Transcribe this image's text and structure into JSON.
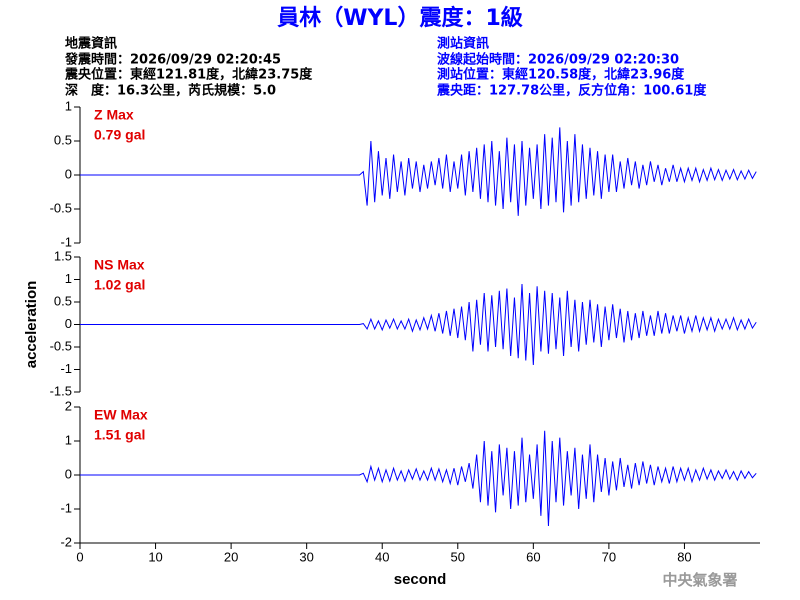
{
  "header": {
    "title": "員林（WYL）震度：1級",
    "left": [
      "地震資訊",
      "發震時間：2026/09/29 02:20:45",
      "震央位置：東經121.81度，北緯23.75度",
      "深　度：16.3公里，芮氏規模：5.0"
    ],
    "right": [
      "測站資訊",
      "波線起始時間：2026/09/29 02:20:30",
      "測站位置：東經120.58度，北緯23.96度",
      "震央距：127.78公里，反方位角：100.61度"
    ]
  },
  "footer": "中央氣象署",
  "chart_data": [
    {
      "type": "line",
      "annotations": [
        "Z Max",
        "0.79 gal"
      ],
      "color": "#0000ff",
      "xlim": [
        0,
        90
      ],
      "ylim": [
        -1,
        1
      ],
      "yticks": [
        -1,
        -0.5,
        0,
        0.5,
        1
      ],
      "x": [
        0,
        10,
        20,
        30,
        37,
        37.5,
        38,
        38.5,
        39,
        39.5,
        40,
        40.5,
        41,
        41.5,
        42,
        42.5,
        43,
        43.5,
        44,
        44.5,
        45,
        45.5,
        46,
        46.5,
        47,
        47.5,
        48,
        48.5,
        49,
        49.5,
        50,
        50.5,
        51,
        51.5,
        52,
        52.5,
        53,
        53.5,
        54,
        54.5,
        55,
        55.5,
        56,
        56.5,
        57,
        57.5,
        58,
        58.5,
        59,
        59.5,
        60,
        60.5,
        61,
        61.5,
        62,
        62.5,
        63,
        63.5,
        64,
        64.5,
        65,
        65.5,
        66,
        66.5,
        67,
        67.5,
        68,
        68.5,
        69,
        69.5,
        70,
        70.5,
        71,
        71.5,
        72,
        72.5,
        73,
        73.5,
        74,
        74.5,
        75,
        75.5,
        76,
        76.5,
        77,
        77.5,
        78,
        78.5,
        79,
        79.5,
        80,
        80.5,
        81,
        81.5,
        82,
        82.5,
        83,
        83.5,
        84,
        84.5,
        85,
        85.5,
        86,
        86.5,
        87,
        87.5,
        88,
        88.5,
        89,
        89.5
      ],
      "values": [
        0,
        0,
        0,
        0,
        0,
        0.05,
        -0.45,
        0.5,
        -0.4,
        0.35,
        -0.3,
        0.25,
        -0.35,
        0.3,
        -0.25,
        0.2,
        -0.3,
        0.25,
        -0.2,
        0.2,
        -0.25,
        0.15,
        -0.2,
        0.2,
        -0.15,
        0.25,
        -0.2,
        0.3,
        -0.25,
        0.2,
        -0.2,
        0.3,
        -0.3,
        0.35,
        -0.25,
        0.4,
        -0.35,
        0.45,
        -0.4,
        0.5,
        -0.45,
        0.35,
        -0.5,
        0.55,
        -0.4,
        0.45,
        -0.6,
        0.5,
        -0.45,
        0.4,
        -0.35,
        0.45,
        -0.5,
        0.6,
        -0.45,
        0.55,
        -0.4,
        0.7,
        -0.55,
        0.5,
        -0.45,
        0.6,
        -0.4,
        0.45,
        -0.35,
        0.4,
        -0.3,
        0.35,
        -0.35,
        0.3,
        -0.25,
        0.3,
        -0.25,
        0.2,
        -0.2,
        0.25,
        -0.15,
        0.2,
        -0.2,
        0.15,
        -0.15,
        0.2,
        -0.1,
        0.15,
        -0.15,
        0.1,
        -0.1,
        0.15,
        -0.1,
        0.1,
        -0.1,
        0.1,
        -0.08,
        0.1,
        -0.1,
        0.08,
        -0.08,
        0.1,
        -0.07,
        0.08,
        -0.08,
        0.07,
        -0.06,
        0.08,
        -0.07,
        0.06,
        -0.06,
        0.07,
        -0.05,
        0.05
      ]
    },
    {
      "type": "line",
      "annotations": [
        "NS Max",
        "1.02 gal"
      ],
      "color": "#0000ff",
      "ylabel": "acceleration",
      "xlim": [
        0,
        90
      ],
      "ylim": [
        -1.5,
        1.5
      ],
      "yticks": [
        -1.5,
        -1,
        -0.5,
        0,
        0.5,
        1,
        1.5
      ],
      "x": [
        0,
        10,
        20,
        30,
        37,
        37.5,
        38,
        38.5,
        39,
        39.5,
        40,
        40.5,
        41,
        41.5,
        42,
        42.5,
        43,
        43.5,
        44,
        44.5,
        45,
        45.5,
        46,
        46.5,
        47,
        47.5,
        48,
        48.5,
        49,
        49.5,
        50,
        50.5,
        51,
        51.5,
        52,
        52.5,
        53,
        53.5,
        54,
        54.5,
        55,
        55.5,
        56,
        56.5,
        57,
        57.5,
        58,
        58.5,
        59,
        59.5,
        60,
        60.5,
        61,
        61.5,
        62,
        62.5,
        63,
        63.5,
        64,
        64.5,
        65,
        65.5,
        66,
        66.5,
        67,
        67.5,
        68,
        68.5,
        69,
        69.5,
        70,
        70.5,
        71,
        71.5,
        72,
        72.5,
        73,
        73.5,
        74,
        74.5,
        75,
        75.5,
        76,
        76.5,
        77,
        77.5,
        78,
        78.5,
        79,
        79.5,
        80,
        80.5,
        81,
        81.5,
        82,
        82.5,
        83,
        83.5,
        84,
        84.5,
        85,
        85.5,
        86,
        86.5,
        87,
        87.5,
        88,
        88.5,
        89,
        89.5
      ],
      "values": [
        0,
        0,
        0,
        0,
        0,
        0.02,
        -0.1,
        0.12,
        -0.1,
        0.08,
        -0.12,
        0.1,
        -0.08,
        0.12,
        -0.1,
        0.08,
        -0.1,
        0.12,
        -0.15,
        0.1,
        -0.12,
        0.15,
        -0.1,
        0.2,
        -0.15,
        0.25,
        -0.2,
        0.3,
        -0.25,
        0.35,
        -0.3,
        0.4,
        -0.35,
        0.5,
        -0.6,
        0.55,
        -0.45,
        0.7,
        -0.6,
        0.65,
        -0.5,
        0.75,
        -0.55,
        0.8,
        -0.7,
        0.6,
        -0.75,
        0.9,
        -0.8,
        0.7,
        -0.9,
        0.85,
        -0.6,
        0.75,
        -0.65,
        0.7,
        -0.55,
        0.6,
        -0.7,
        0.75,
        -0.5,
        0.55,
        -0.6,
        0.5,
        -0.45,
        0.55,
        -0.4,
        0.45,
        -0.5,
        0.4,
        -0.35,
        0.45,
        -0.3,
        0.35,
        -0.4,
        0.3,
        -0.35,
        0.25,
        -0.3,
        0.3,
        -0.25,
        0.2,
        -0.25,
        0.3,
        -0.2,
        0.25,
        -0.2,
        0.2,
        -0.15,
        0.2,
        -0.2,
        0.15,
        -0.15,
        0.2,
        -0.15,
        0.15,
        -0.12,
        0.15,
        -0.15,
        0.12,
        -0.1,
        0.12,
        -0.1,
        0.15,
        -0.12,
        0.1,
        -0.1,
        0.12,
        -0.08,
        0.05
      ]
    },
    {
      "type": "line",
      "annotations": [
        "EW Max",
        "1.51 gal"
      ],
      "color": "#0000ff",
      "xlabel": "second",
      "xlim": [
        0,
        90
      ],
      "xticks": [
        0,
        10,
        20,
        30,
        40,
        50,
        60,
        70,
        80
      ],
      "ylim": [
        -2,
        2
      ],
      "yticks": [
        -2,
        -1,
        0,
        1,
        2
      ],
      "x": [
        0,
        10,
        20,
        30,
        37,
        37.5,
        38,
        38.5,
        39,
        39.5,
        40,
        40.5,
        41,
        41.5,
        42,
        42.5,
        43,
        43.5,
        44,
        44.5,
        45,
        45.5,
        46,
        46.5,
        47,
        47.5,
        48,
        48.5,
        49,
        49.5,
        50,
        50.5,
        51,
        51.5,
        52,
        52.5,
        53,
        53.5,
        54,
        54.5,
        55,
        55.5,
        56,
        56.5,
        57,
        57.5,
        58,
        58.5,
        59,
        59.5,
        60,
        60.5,
        61,
        61.5,
        62,
        62.5,
        63,
        63.5,
        64,
        64.5,
        65,
        65.5,
        66,
        66.5,
        67,
        67.5,
        68,
        68.5,
        69,
        69.5,
        70,
        70.5,
        71,
        71.5,
        72,
        72.5,
        73,
        73.5,
        74,
        74.5,
        75,
        75.5,
        76,
        76.5,
        77,
        77.5,
        78,
        78.5,
        79,
        79.5,
        80,
        80.5,
        81,
        81.5,
        82,
        82.5,
        83,
        83.5,
        84,
        84.5,
        85,
        85.5,
        86,
        86.5,
        87,
        87.5,
        88,
        88.5,
        89,
        89.5
      ],
      "values": [
        0,
        0,
        0,
        0,
        0,
        0.05,
        -0.2,
        0.25,
        -0.15,
        0.2,
        -0.2,
        0.15,
        -0.18,
        0.2,
        -0.15,
        0.12,
        -0.18,
        0.15,
        -0.12,
        0.18,
        -0.15,
        0.12,
        -0.15,
        0.2,
        -0.15,
        0.18,
        -0.2,
        0.15,
        -0.25,
        0.2,
        -0.3,
        0.25,
        -0.2,
        0.35,
        -0.4,
        0.6,
        -0.8,
        1.0,
        -0.9,
        0.7,
        -1.1,
        0.9,
        -0.6,
        0.8,
        -1.0,
        0.7,
        -0.9,
        1.1,
        -0.8,
        0.6,
        -0.7,
        0.9,
        -1.2,
        1.3,
        -1.5,
        1.0,
        -0.8,
        1.1,
        -0.9,
        0.7,
        -0.6,
        0.8,
        -1.0,
        0.6,
        -0.7,
        0.9,
        -0.8,
        0.6,
        -0.5,
        0.5,
        -0.6,
        0.4,
        -0.45,
        0.5,
        -0.35,
        0.3,
        -0.4,
        0.35,
        -0.3,
        0.4,
        -0.25,
        0.3,
        -0.3,
        0.25,
        -0.2,
        0.2,
        -0.25,
        0.25,
        -0.2,
        0.2,
        -0.15,
        0.2,
        -0.2,
        0.15,
        -0.15,
        0.2,
        -0.12,
        0.15,
        -0.15,
        0.12,
        -0.1,
        0.15,
        -0.12,
        0.1,
        -0.15,
        0.12,
        -0.1,
        0.1,
        -0.08,
        0.05
      ]
    }
  ]
}
